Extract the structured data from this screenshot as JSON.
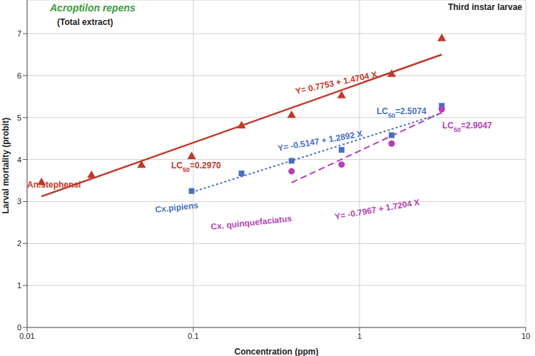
{
  "chart_data": {
    "type": "scatter",
    "title": "Acroptilon repens",
    "subtitle": "(Total extract)",
    "corner_text": "Third instar larvae",
    "x_label": "Concentration (ppm)",
    "y_label": "Larval mortality (probit)",
    "log": "x",
    "grid": true,
    "xlim": [
      0.01,
      10
    ],
    "xticks": [
      0.01,
      0.1,
      1,
      10
    ],
    "ylim": [
      0,
      7.8
    ],
    "yticks": [
      0,
      1,
      2,
      3,
      4,
      5,
      6,
      7
    ],
    "series": [
      {
        "name": "An.stephensi",
        "color": "#c0392b",
        "marker": "triangle",
        "line_style": "solid",
        "x": [
          0.0122,
          0.0244,
          0.0488,
          0.0977,
          0.195,
          0.39,
          0.78,
          1.56,
          3.125
        ],
        "values": [
          3.45,
          3.62,
          3.86,
          4.07,
          4.8,
          5.05,
          5.52,
          6.03,
          6.88
        ],
        "fit": {
          "x": [
            0.0122,
            3.125
          ],
          "y": [
            3.12,
            6.5
          ]
        },
        "annotations": [
          "LC50=0.2970",
          "Y= 0.7753 + 1.4704 X"
        ]
      },
      {
        "name": "Cx.pipiens",
        "color": "#4a6fc0",
        "marker": "square",
        "line_style": "dotted",
        "x": [
          0.0977,
          0.195,
          0.39,
          0.78,
          1.56,
          3.125
        ],
        "values": [
          3.25,
          3.67,
          3.97,
          4.23,
          4.58,
          5.28
        ],
        "fit": {
          "x": [
            0.0977,
            3.125
          ],
          "y": [
            3.22,
            5.1
          ]
        },
        "annotations": [
          "LC50=2.5074",
          "Y= -0.5147 + 1.2892 X"
        ]
      },
      {
        "name": "Cx. quinquefaciatus",
        "color": "#b53fb5",
        "marker": "circle",
        "line_style": "dashed",
        "x": [
          0.39,
          0.78,
          1.56,
          3.125
        ],
        "values": [
          3.72,
          3.88,
          4.38,
          5.2
        ],
        "fit": {
          "x": [
            0.39,
            3.125
          ],
          "y": [
            3.45,
            5.12
          ]
        },
        "annotations": [
          "LC50=2.9047",
          "Y= -0.7967 + 1.7204 X"
        ]
      }
    ]
  }
}
